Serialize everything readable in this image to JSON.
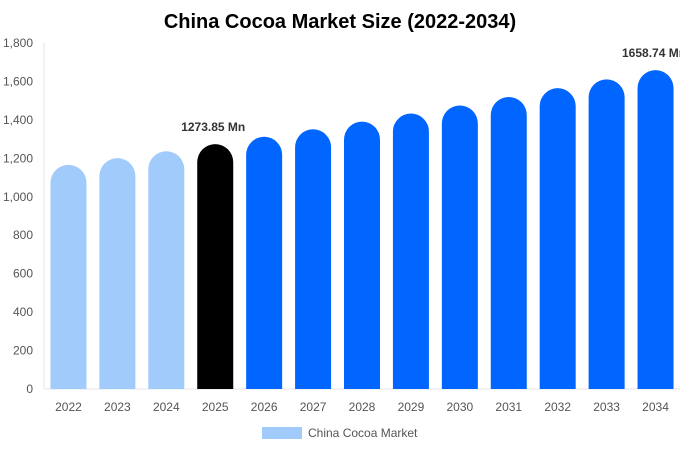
{
  "chart_data": {
    "type": "bar",
    "title": "China Cocoa Market Size (2022-2034)",
    "xlabel": "",
    "ylabel": "",
    "ylim": [
      0,
      1800
    ],
    "yticks": [
      0,
      200,
      400,
      600,
      800,
      1000,
      1200,
      1400,
      1600,
      1800
    ],
    "ytick_labels": [
      "0",
      "200",
      "400",
      "600",
      "800",
      "1,000",
      "1,200",
      "1,400",
      "1,600",
      "1,800"
    ],
    "categories": [
      "2022",
      "2023",
      "2024",
      "2025",
      "2026",
      "2027",
      "2028",
      "2029",
      "2030",
      "2031",
      "2032",
      "2033",
      "2034"
    ],
    "series": [
      {
        "name": "China Cocoa Market",
        "values": [
          1166,
          1201,
          1237,
          1273.85,
          1312,
          1351,
          1391,
          1433,
          1475,
          1519,
          1565,
          1611,
          1658.74
        ]
      }
    ],
    "bar_colors": [
      "#a0cbfa",
      "#a0cbfa",
      "#a0cbfa",
      "#000000",
      "#0066ff",
      "#0066ff",
      "#0066ff",
      "#0066ff",
      "#0066ff",
      "#0066ff",
      "#0066ff",
      "#0066ff",
      "#0066ff"
    ],
    "data_labels": [
      {
        "category": "2025",
        "text": "1273.85 Mn"
      },
      {
        "category": "2034",
        "text": "1658.74 Mn"
      }
    ],
    "legend": {
      "position": "bottom",
      "label": "China Cocoa Market",
      "color": "#a0cbfa"
    },
    "grid": false
  }
}
